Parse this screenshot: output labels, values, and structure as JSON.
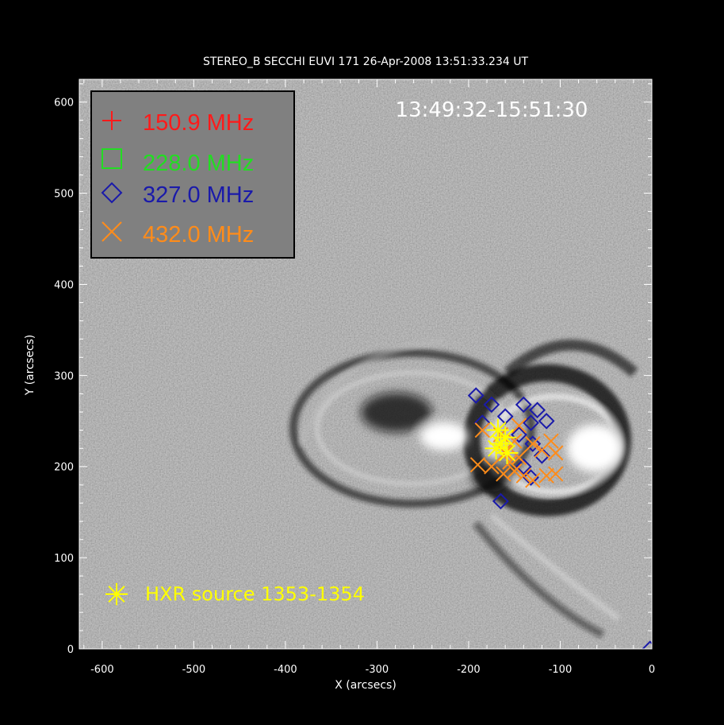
{
  "figure": {
    "title": "STEREO_B SECCHI EUVI 171 26-Apr-2008 13:51:33.234 UT",
    "time_range": "13:49:32-15:51:30",
    "x_axis_label": "X (arcsecs)",
    "y_axis_label": "Y (arcsecs)",
    "x_ticks": [
      "-600",
      "-500",
      "-400",
      "-300",
      "-200",
      "-100",
      "0"
    ],
    "y_ticks": [
      "0",
      "100",
      "200",
      "300",
      "400",
      "500",
      "600"
    ],
    "x_range": [
      -625,
      0
    ],
    "y_range": [
      0,
      625
    ],
    "legend": [
      {
        "label": "150.9 MHz",
        "symbol": "plus",
        "color": "#ff1a1a"
      },
      {
        "label": "228.0 MHz",
        "symbol": "square",
        "color": "#22dd22"
      },
      {
        "label": "327.0 MHz",
        "symbol": "diamond",
        "color": "#1a1aaa"
      },
      {
        "label": "432.0 MHz",
        "symbol": "cross",
        "color": "#ff8c1a"
      }
    ],
    "hxr_label": "HXR source 1353-1354",
    "hxr_color": "#ffff00",
    "legend_box_color": "#808080"
  },
  "chart_data": {
    "type": "scatter",
    "xlabel": "X (arcsecs)",
    "ylabel": "Y (arcsecs)",
    "xlim": [
      -625,
      0
    ],
    "ylim": [
      0,
      625
    ],
    "series": [
      {
        "name": "327.0 MHz",
        "symbol": "diamond",
        "color": "#1a1aaa",
        "points": [
          [
            -192,
            278
          ],
          [
            -175,
            268
          ],
          [
            -185,
            248
          ],
          [
            -160,
            255
          ],
          [
            -140,
            268
          ],
          [
            -125,
            262
          ],
          [
            -132,
            248
          ],
          [
            -115,
            250
          ],
          [
            -145,
            235
          ],
          [
            -130,
            225
          ],
          [
            -120,
            212
          ],
          [
            -140,
            200
          ],
          [
            -132,
            188
          ],
          [
            -165,
            162
          ],
          [
            -2,
            0
          ]
        ]
      },
      {
        "name": "432.0 MHz",
        "symbol": "cross",
        "color": "#ff8c1a",
        "points": [
          [
            -185,
            240
          ],
          [
            -165,
            235
          ],
          [
            -145,
            245
          ],
          [
            -150,
            228
          ],
          [
            -130,
            225
          ],
          [
            -110,
            228
          ],
          [
            -160,
            215
          ],
          [
            -145,
            210
          ],
          [
            -120,
            218
          ],
          [
            -105,
            215
          ],
          [
            -190,
            202
          ],
          [
            -175,
            200
          ],
          [
            -162,
            192
          ],
          [
            -150,
            195
          ],
          [
            -140,
            190
          ],
          [
            -130,
            185
          ],
          [
            -115,
            190
          ],
          [
            -105,
            192
          ],
          [
            -155,
            205
          ]
        ]
      },
      {
        "name": "HXR source 1353-1354",
        "symbol": "asterisk",
        "color": "#ffff00",
        "points": [
          [
            -165,
            225
          ],
          [
            -160,
            232
          ],
          [
            -170,
            220
          ],
          [
            -158,
            215
          ],
          [
            -168,
            240
          ]
        ]
      }
    ],
    "annotations": [
      "13:49:32-15:51:30",
      "HXR source 1353-1354"
    ]
  }
}
